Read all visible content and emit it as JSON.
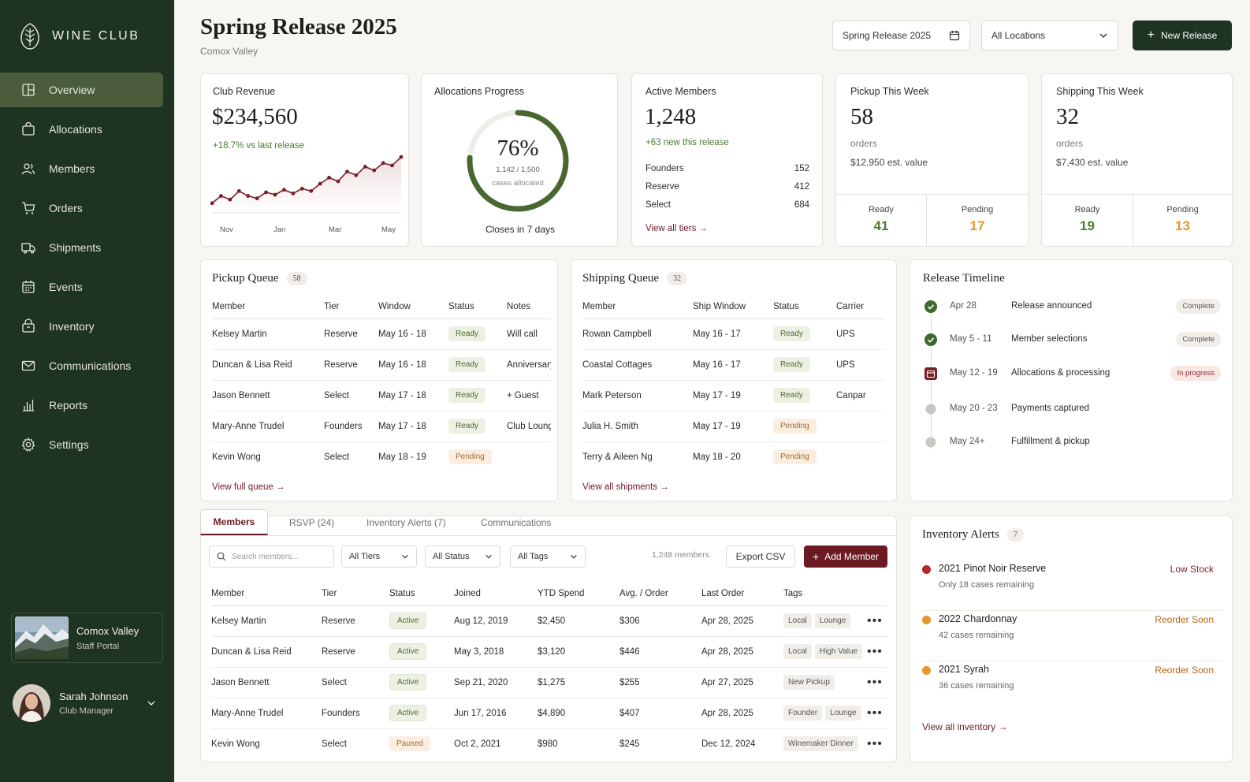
{
  "brand": {
    "name": "WINE CLUB"
  },
  "sidebar": {
    "items": [
      {
        "label": "Overview",
        "icon": "overview-icon"
      },
      {
        "label": "Allocations",
        "icon": "bag-icon"
      },
      {
        "label": "Members",
        "icon": "members-icon"
      },
      {
        "label": "Orders",
        "icon": "cart-icon"
      },
      {
        "label": "Shipments",
        "icon": "truck-icon"
      },
      {
        "label": "Events",
        "icon": "calendar-icon"
      },
      {
        "label": "Inventory",
        "icon": "inventory-icon"
      },
      {
        "label": "Communications",
        "icon": "mail-icon"
      },
      {
        "label": "Reports",
        "icon": "chart-icon"
      },
      {
        "label": "Settings",
        "icon": "gear-icon"
      }
    ],
    "active": "Overview",
    "location": {
      "name": "Comox Valley",
      "sub": "Staff Portal"
    },
    "user": {
      "name": "Sarah Johnson",
      "role": "Club Manager"
    }
  },
  "header": {
    "title": "Spring Release 2025",
    "subtitle": "Comox Valley",
    "release_select": "Spring Release 2025",
    "location_select": "All Locations",
    "new_release": "New Release"
  },
  "revenue": {
    "label": "Club Revenue",
    "value": "$234,560",
    "delta": "+18.7% vs last release",
    "chart_labels": [
      "Nov",
      "Jan",
      "Mar",
      "May"
    ],
    "series": [
      12,
      18,
      15,
      22,
      18,
      16,
      21,
      19,
      23,
      20,
      24,
      22,
      28,
      33,
      30,
      38,
      35,
      42,
      39,
      45,
      43,
      50
    ]
  },
  "allocations": {
    "label": "Allocations Progress",
    "percent": "76%",
    "progress": 0.76,
    "detail": "1,142 / 1,500",
    "detail2": "cases allocated",
    "footer": "Closes in 7 days"
  },
  "members_card": {
    "label": "Active Members",
    "value": "1,248",
    "delta": "+63 new this release",
    "tiers": [
      {
        "name": "Founders",
        "count": "152"
      },
      {
        "name": "Reserve",
        "count": "412"
      },
      {
        "name": "Select",
        "count": "684"
      }
    ],
    "link": "View all tiers"
  },
  "pickup_week": {
    "label": "Pickup This Week",
    "value": "58",
    "unit": "orders",
    "est": "$12,950 est. value",
    "ready_label": "Ready",
    "ready": "41",
    "pending_label": "Pending",
    "pending": "17"
  },
  "shipping_week": {
    "label": "Shipping This Week",
    "value": "32",
    "unit": "orders",
    "est": "$7,430 est. value",
    "ready_label": "Ready",
    "ready": "19",
    "pending_label": "Pending",
    "pending": "13"
  },
  "pickup_queue": {
    "title": "Pickup Queue",
    "count": "58",
    "headers": [
      "Member",
      "Tier",
      "Window",
      "Status",
      "Notes"
    ],
    "rows": [
      [
        "Kelsey Martin",
        "Reserve",
        "May 16 - 18",
        "Ready",
        "Will call"
      ],
      [
        "Duncan & Lisa Reid",
        "Reserve",
        "May 16 - 18",
        "Ready",
        "Anniversary"
      ],
      [
        "Jason Bennett",
        "Select",
        "May 17 - 18",
        "Ready",
        "+ Guest"
      ],
      [
        "Mary-Anne Trudel",
        "Founders",
        "May 17 - 18",
        "Ready",
        "Club Lounge"
      ],
      [
        "Kevin Wong",
        "Select",
        "May 18 - 19",
        "Pending",
        ""
      ]
    ],
    "link": "View full queue"
  },
  "shipping_queue": {
    "title": "Shipping Queue",
    "count": "32",
    "headers": [
      "Member",
      "Ship Window",
      "Status",
      "Carrier"
    ],
    "rows": [
      [
        "Rowan Campbell",
        "May 16 - 17",
        "Ready",
        "UPS"
      ],
      [
        "Coastal Cottages",
        "May 16 - 17",
        "Ready",
        "UPS"
      ],
      [
        "Mark Peterson",
        "May 17 - 19",
        "Ready",
        "Canpar"
      ],
      [
        "Julia H. Smith",
        "May 17 - 19",
        "Pending",
        ""
      ],
      [
        "Terry & Aileen Ng",
        "May 18 - 20",
        "Pending",
        ""
      ]
    ],
    "link": "View all shipments"
  },
  "timeline": {
    "title": "Release Timeline",
    "items": [
      {
        "date": "Apr 28",
        "label": "Release announced",
        "status": "Complete",
        "state": "done"
      },
      {
        "date": "May 5 - 11",
        "label": "Member selections",
        "status": "Complete",
        "state": "done"
      },
      {
        "date": "May 12 - 19",
        "label": "Allocations & processing",
        "status": "In progress",
        "state": "current"
      },
      {
        "date": "May 20 - 23",
        "label": "Payments captured",
        "status": "",
        "state": "todo"
      },
      {
        "date": "May 24+",
        "label": "Fulfillment & pickup",
        "status": "",
        "state": "todo"
      }
    ]
  },
  "tabs": [
    "Members",
    "RSVP (24)",
    "Inventory Alerts (7)",
    "Communications"
  ],
  "members_table": {
    "search_placeholder": "Search members...",
    "filters": [
      "All Tiers",
      "All Status",
      "All Tags"
    ],
    "count": "1,248 members",
    "export": "Export CSV",
    "add": "Add Member",
    "headers": [
      "Member",
      "Tier",
      "Status",
      "Joined",
      "YTD Spend",
      "Avg. / Order",
      "Last Order",
      "Tags"
    ],
    "rows": [
      {
        "member": "Kelsey Martin",
        "tier": "Reserve",
        "status": "Active",
        "joined": "Aug 12, 2019",
        "ytd": "$2,450",
        "avg": "$306",
        "last": "Apr 28, 2025",
        "tags": [
          "Local",
          "Lounge"
        ]
      },
      {
        "member": "Duncan & Lisa Reid",
        "tier": "Reserve",
        "status": "Active",
        "joined": "May 3, 2018",
        "ytd": "$3,120",
        "avg": "$446",
        "last": "Apr 28, 2025",
        "tags": [
          "Local",
          "High Value"
        ]
      },
      {
        "member": "Jason Bennett",
        "tier": "Select",
        "status": "Active",
        "joined": "Sep 21, 2020",
        "ytd": "$1,275",
        "avg": "$255",
        "last": "Apr 27, 2025",
        "tags": [
          "New Pickup"
        ]
      },
      {
        "member": "Mary-Anne Trudel",
        "tier": "Founders",
        "status": "Active",
        "joined": "Jun 17, 2016",
        "ytd": "$4,890",
        "avg": "$407",
        "last": "Apr 28, 2025",
        "tags": [
          "Founder",
          "Lounge"
        ]
      },
      {
        "member": "Kevin Wong",
        "tier": "Select",
        "status": "Paused",
        "joined": "Oct 2, 2021",
        "ytd": "$980",
        "avg": "$245",
        "last": "Dec 12, 2024",
        "tags": [
          "Winemaker Dinner"
        ]
      }
    ]
  },
  "inventory_alerts": {
    "title": "Inventory Alerts",
    "count": "7",
    "items": [
      {
        "name": "2021 Pinot Noir Reserve",
        "sub": "Only 18 cases remaining",
        "status": "Low Stock",
        "color": "#b3262d",
        "status_color": "#8a1f27"
      },
      {
        "name": "2022 Chardonnay",
        "sub": "42 cases remaining",
        "status": "Reorder Soon",
        "color": "#e9952a",
        "status_color": "#b5651d"
      },
      {
        "name": "2021 Syrah",
        "sub": "36 cases remaining",
        "status": "Reorder Soon",
        "color": "#e9952a",
        "status_color": "#b5651d"
      }
    ],
    "link": "View all inventory"
  },
  "colors": {
    "sidebar": "#1f3322",
    "accent": "#6b1a22",
    "green": "#4e7a31",
    "amber": "#e9952a"
  }
}
